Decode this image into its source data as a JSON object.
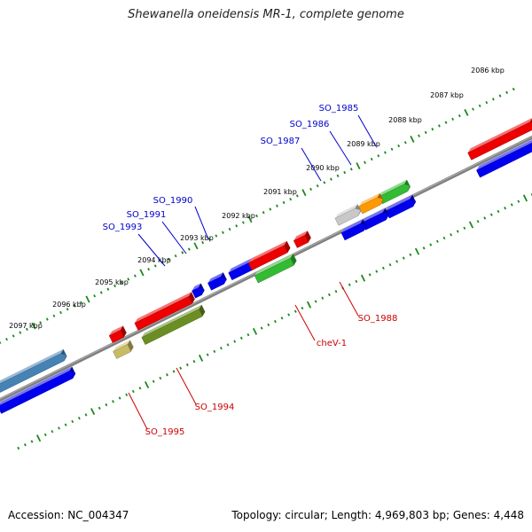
{
  "title": "Shewanella oneidensis MR-1, complete genome",
  "footer": {
    "accession": "Accession: NC_004347",
    "summary": "Topology: circular; Length: 4,969,803 bp; Genes: 4,448"
  },
  "colors": {
    "backbone": "#808080",
    "tick": "#1a8a1a",
    "label_forward": "#0000cc",
    "label_reverse": "#cc0000"
  },
  "ticks": [
    "2086 kbp",
    "2087 kbp",
    "2088 kbp",
    "2089 kbp",
    "2090 kbp",
    "2091 kbp",
    "2092 kbp",
    "2093 kbp",
    "2094 kbp",
    "2095 kbp",
    "2096 kbp",
    "2097 kbp"
  ],
  "genes": [
    {
      "name": "SO_1985",
      "strand": "forward",
      "color": "#33bb33"
    },
    {
      "name": "SO_1986",
      "strand": "forward",
      "color": "#ff9900"
    },
    {
      "name": "SO_1987",
      "strand": "forward",
      "color": "#c8c8c8"
    },
    {
      "name": "SO_1990",
      "strand": "forward",
      "color": "#0000ee"
    },
    {
      "name": "SO_1991",
      "strand": "forward",
      "color": "#0000ee"
    },
    {
      "name": "SO_1993",
      "strand": "forward",
      "color": "#0000ee"
    },
    {
      "name": "SO_1988",
      "strand": "reverse",
      "color": "#ee0000"
    },
    {
      "name": "cheV-1",
      "strand": "reverse",
      "color": "#33bb33"
    },
    {
      "name": "SO_1994",
      "strand": "reverse",
      "color": "#6b8e23"
    },
    {
      "name": "SO_1995",
      "strand": "reverse",
      "color": "#c8bb66"
    }
  ]
}
